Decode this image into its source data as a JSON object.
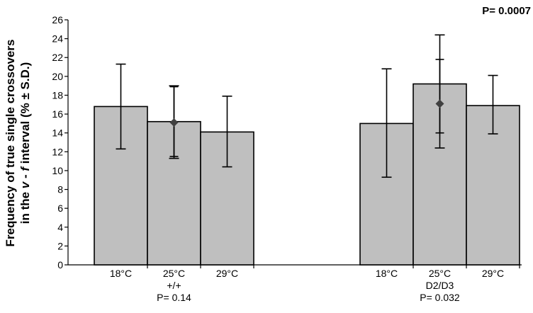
{
  "chart_data": {
    "type": "bar",
    "ylabel_line1": "Frequency of true single crossovers",
    "ylabel_line2_pre": "in the ",
    "ylabel_v": "v",
    "ylabel_dash": " - ",
    "ylabel_f": "f",
    "ylabel_post": " interval (% ± S.D.)",
    "ylim": [
      0,
      26
    ],
    "yticks": [
      "0",
      "2",
      "4",
      "6",
      "8",
      "10",
      "12",
      "14",
      "16",
      "18",
      "20",
      "22",
      "24",
      "26"
    ],
    "grid": false,
    "bar_color": "#bfbfbf",
    "marker_color": "#404040",
    "groups": [
      {
        "genotype": "+/+",
        "p_label": "P= 0.14",
        "bars": [
          {
            "category": "18°C",
            "value": 16.8,
            "err_low": 12.3,
            "err_high": 21.3
          },
          {
            "category": "25°C",
            "value": 15.2,
            "err_low": 11.3,
            "err_high": 19.0,
            "marker": 15.1,
            "marker_low": 11.5,
            "marker_high": 18.9
          },
          {
            "category": "29°C",
            "value": 14.1,
            "err_low": 10.4,
            "err_high": 17.9
          }
        ]
      },
      {
        "genotype": "D2/D3",
        "p_label": "P= 0.032",
        "bars": [
          {
            "category": "18°C",
            "value": 15.0,
            "err_low": 9.3,
            "err_high": 20.8
          },
          {
            "category": "25°C",
            "value": 19.2,
            "err_low": 12.4,
            "err_high": 24.4,
            "marker": 17.1,
            "marker_low": 14.0,
            "marker_high": 21.8
          },
          {
            "category": "29°C",
            "value": 16.9,
            "err_low": 13.9,
            "err_high": 20.1
          }
        ]
      }
    ],
    "annotation": "P= 0.0007"
  }
}
